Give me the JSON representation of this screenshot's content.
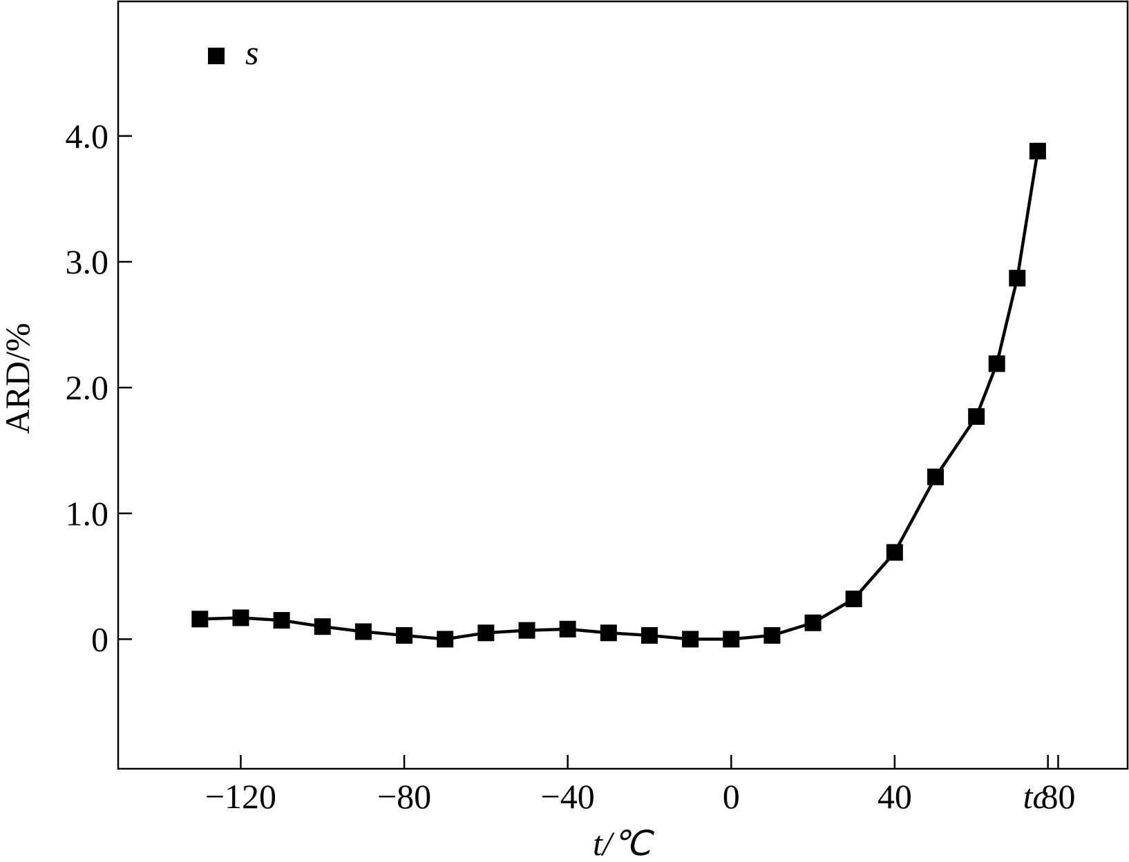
{
  "chart_data": {
    "type": "line",
    "x_label": "t/℃",
    "y_label": "ARD/%",
    "x": [
      -130,
      -120,
      -110,
      -100,
      -90,
      -80,
      -70,
      -60,
      -50,
      -40,
      -30,
      -20,
      -10,
      0,
      10,
      20,
      30,
      40,
      50,
      60,
      65,
      70,
      75
    ],
    "series": [
      {
        "name": "s",
        "color": "#000000",
        "values": [
          0.16,
          0.17,
          0.15,
          0.1,
          0.06,
          0.03,
          0.0,
          0.05,
          0.07,
          0.08,
          0.05,
          0.03,
          0.0,
          0.0,
          0.03,
          0.13,
          0.32,
          0.69,
          1.29,
          1.77,
          2.19,
          2.87,
          3.88
        ]
      }
    ],
    "xlim": [
      -150,
      97
    ],
    "ylim": [
      -1.03,
      5.07
    ],
    "xticks": [
      {
        "value": -120,
        "label": "−120"
      },
      {
        "value": -80,
        "label": "−80"
      },
      {
        "value": -40,
        "label": "−40"
      },
      0,
      40,
      {
        "value": 77.5,
        "label": "tc"
      },
      80
    ],
    "yticks": [
      0,
      {
        "value": 1,
        "label": "1.0"
      },
      {
        "value": 2,
        "label": "2.0"
      },
      {
        "value": 3,
        "label": "3.0"
      },
      {
        "value": 4,
        "label": "4.0"
      }
    ],
    "legend": "upper left",
    "grid": false
  }
}
